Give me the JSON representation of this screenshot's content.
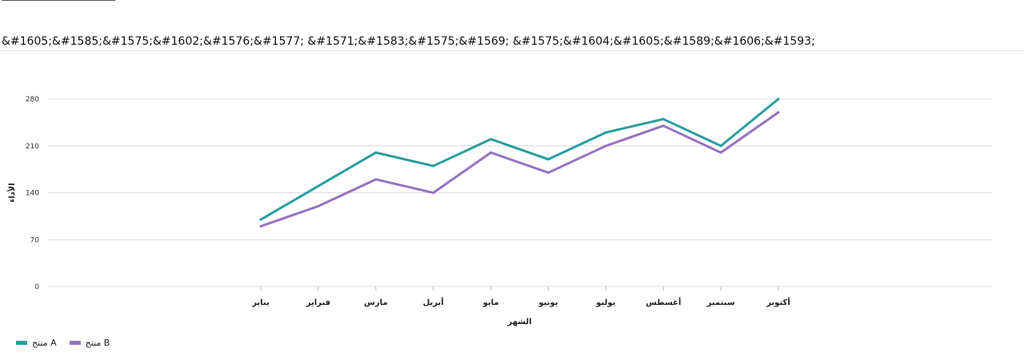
{
  "chart_data": {
    "type": "line",
    "title": "&#1605;&#1585;&#1575;&#1602;&#1576;&#1577; &#1571;&#1583;&#1575;&#1569; &#1575;&#1604;&#1605;&#1589;&#1606;&#1593;",
    "xlabel": "الشهر",
    "ylabel": "الأداء",
    "categories": [
      "يناير",
      "فبراير",
      "مارس",
      "أبريل",
      "مايو",
      "يونيو",
      "يوليو",
      "أغسطس",
      "سبتمبر",
      "أكتوبر"
    ],
    "series": [
      {
        "name": "منتج A",
        "color": "#2a9d9f",
        "values": [
          100,
          150,
          200,
          180,
          220,
          190,
          230,
          250,
          210,
          280
        ]
      },
      {
        "name": "منتج B",
        "color": "#9673c0",
        "values": [
          90,
          120,
          160,
          140,
          200,
          170,
          210,
          240,
          200,
          260
        ]
      }
    ],
    "yticks": [
      0,
      70,
      140,
      210,
      280
    ],
    "ylim": [
      0,
      280
    ],
    "grid": true,
    "legend_position": "bottom-left"
  }
}
